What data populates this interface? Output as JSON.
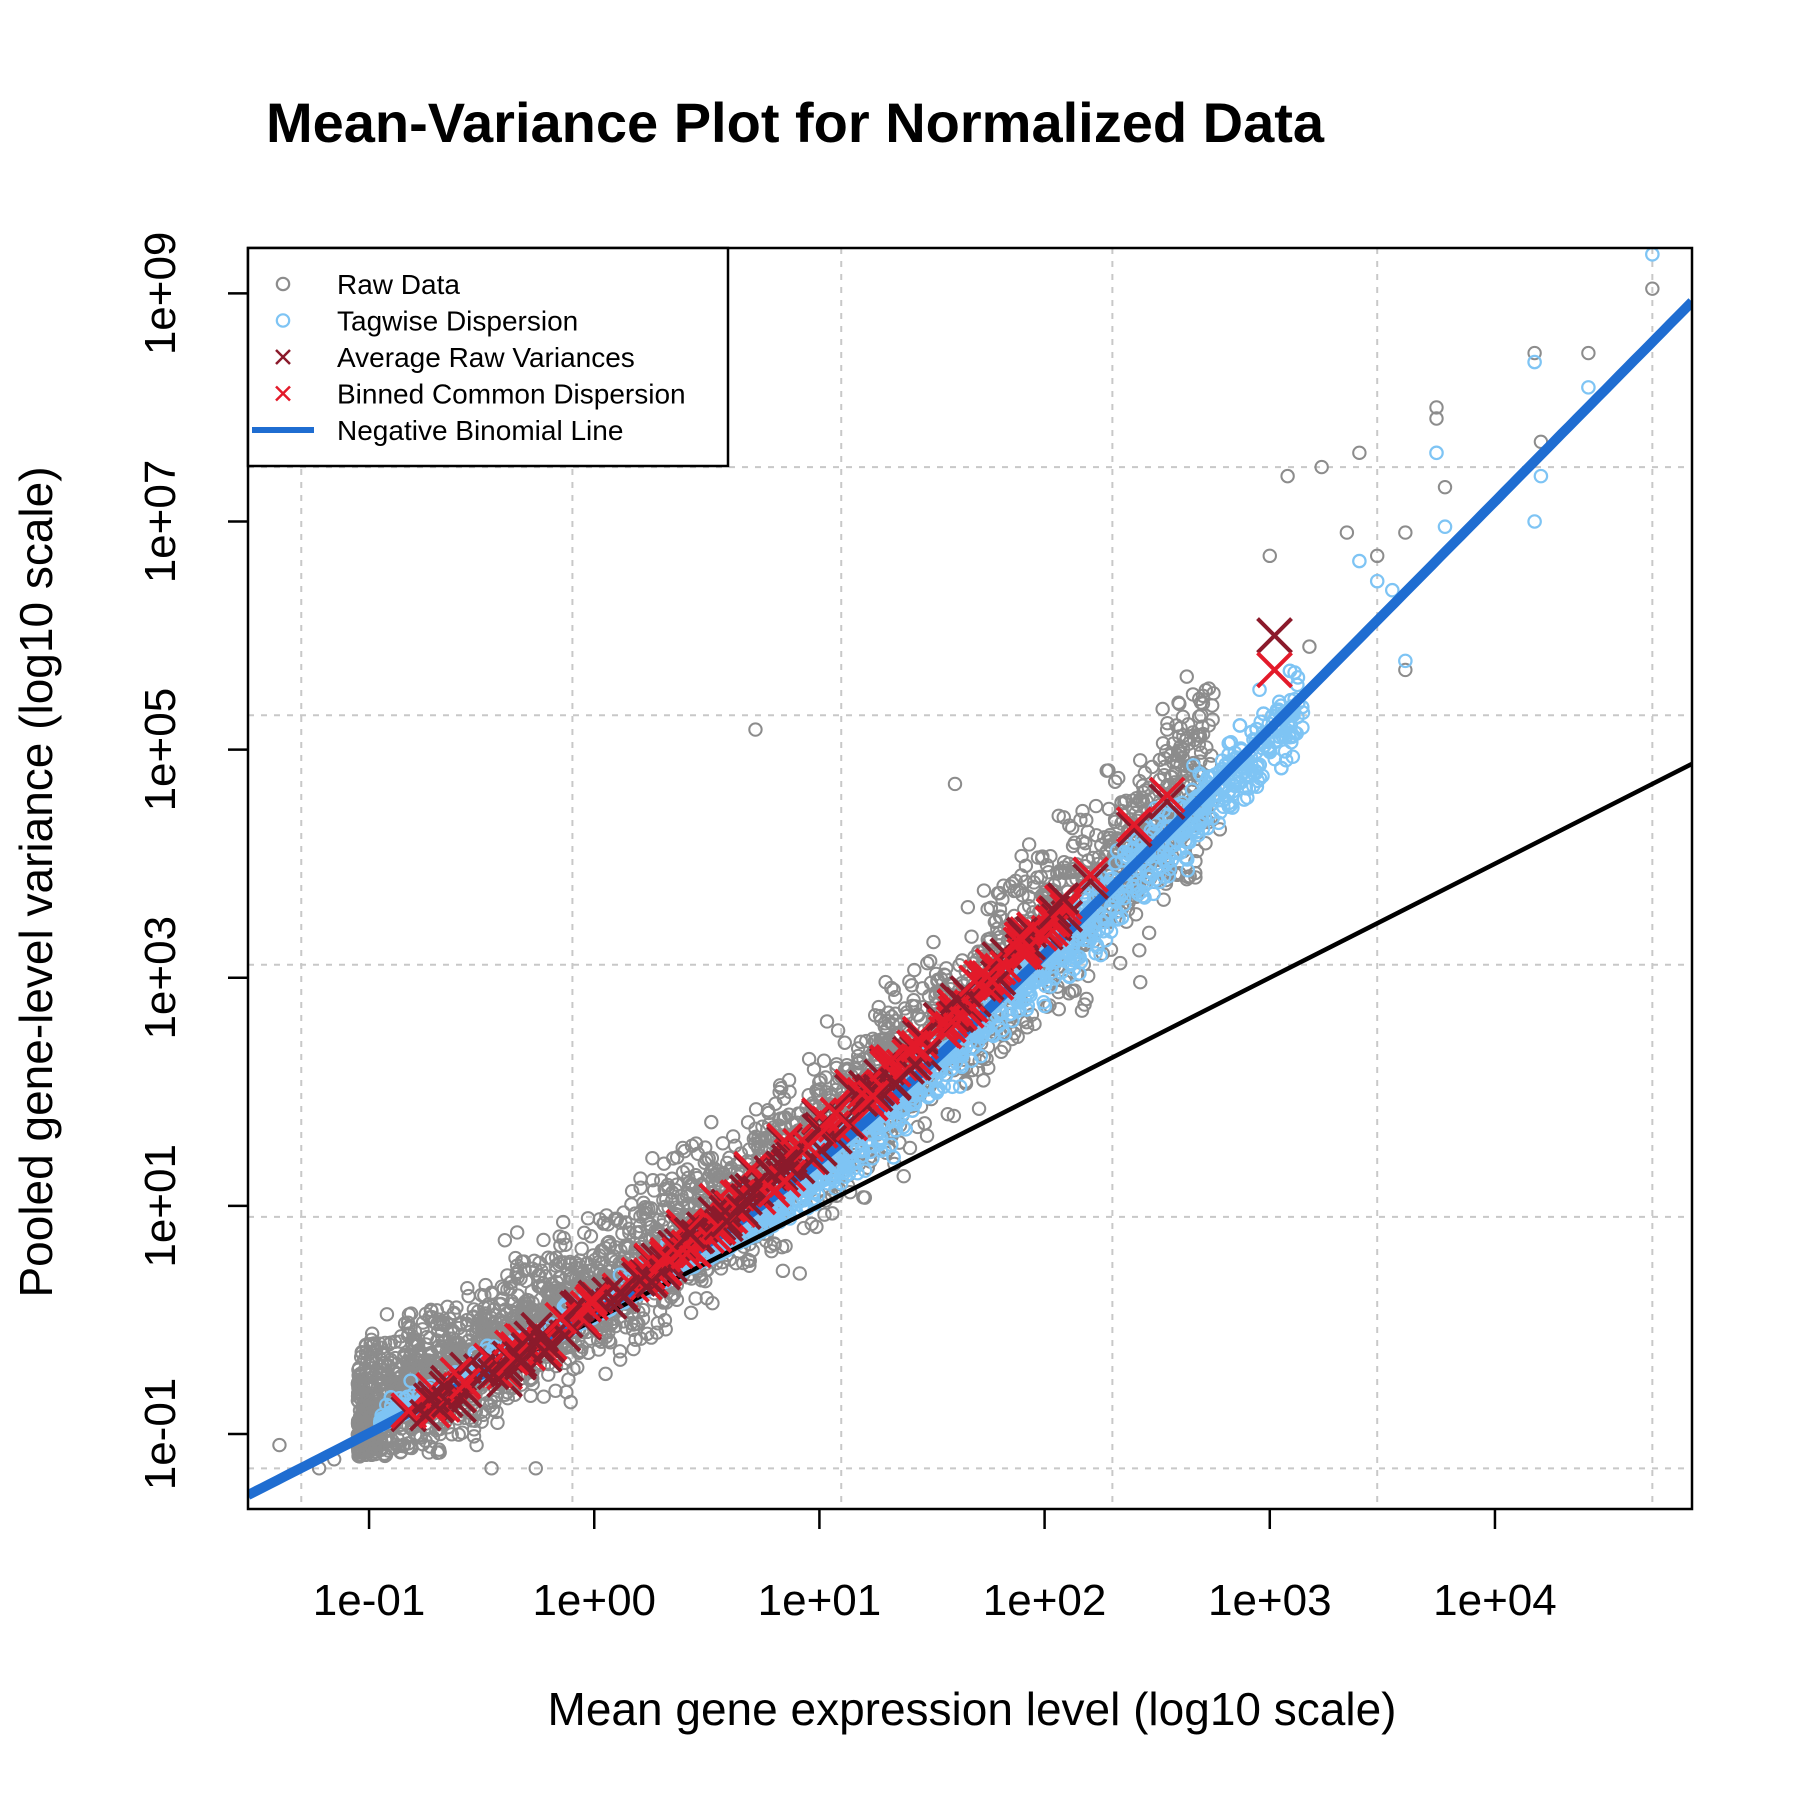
{
  "chart_data": {
    "type": "scatter",
    "title": "Mean-Variance Plot for Normalized Data",
    "xlabel": "Mean gene expression level (log10 scale)",
    "ylabel": "Pooled gene-level variance (log10 scale)",
    "x_scale": "log10",
    "y_scale": "log10",
    "xlim": [
      0.029,
      75000
    ],
    "ylim": [
      0.022,
      2500000000
    ],
    "x_ticks": [
      {
        "value": 0.1,
        "label": "1e-01"
      },
      {
        "value": 1,
        "label": "1e+00"
      },
      {
        "value": 10,
        "label": "1e+01"
      },
      {
        "value": 100,
        "label": "1e+02"
      },
      {
        "value": 1000,
        "label": "1e+03"
      },
      {
        "value": 10000,
        "label": "1e+04"
      }
    ],
    "y_ticks": [
      {
        "value": 0.1,
        "label": "1e-01"
      },
      {
        "value": 10,
        "label": "1e+01"
      },
      {
        "value": 1000,
        "label": "1e+03"
      },
      {
        "value": 100000,
        "label": "1e+05"
      },
      {
        "value": 10000000,
        "label": "1e+07"
      },
      {
        "value": 1000000000,
        "label": "1e+09"
      }
    ],
    "grid": true,
    "grid_x": [
      0.05,
      0.8,
      12.5,
      200,
      3000,
      50000
    ],
    "grid_y": [
      0.05,
      8,
      1300,
      200000,
      30000000
    ],
    "legend_position": "top-left",
    "legend": [
      {
        "label": "Raw Data",
        "symbol": "circle",
        "color": "#8c8c8c"
      },
      {
        "label": "Tagwise Dispersion",
        "symbol": "circle",
        "color": "#7ec4f4"
      },
      {
        "label": "Average Raw Variances",
        "symbol": "x",
        "color": "#8b1a2b"
      },
      {
        "label": "Binned Common Dispersion",
        "symbol": "x",
        "color": "#e31a2a"
      },
      {
        "label": "Negative Binomial Line",
        "symbol": "line",
        "color": "#1f6dd1"
      }
    ],
    "series": [
      {
        "name": "Negative Binomial Line",
        "kind": "curve",
        "model": "variance = mean + phi * mean^2",
        "phi": 0.15,
        "color": "#1f6dd1"
      },
      {
        "kind": "line",
        "model": "variance = mean",
        "color": "#000000"
      },
      {
        "name": "Raw Data",
        "kind": "cloud",
        "color": "#8c8c8c",
        "note_outliers": true,
        "outliers": [
          [
            0.04,
            0.08
          ],
          [
            0.06,
            0.05
          ],
          [
            0.07,
            0.06
          ],
          [
            0.35,
            0.05
          ],
          [
            0.55,
            0.05
          ],
          [
            5.2,
            150000
          ],
          [
            40,
            50000
          ],
          [
            350,
            150000
          ],
          [
            600,
            20000
          ],
          [
            1000,
            5000000
          ],
          [
            1200,
            25000000
          ],
          [
            1700,
            30000000
          ],
          [
            2200,
            8000000
          ],
          [
            2500,
            40000000
          ],
          [
            4000,
            8000000
          ],
          [
            5500,
            80000000
          ],
          [
            5500,
            100000000
          ],
          [
            6000,
            20000000
          ],
          [
            15000,
            300000000
          ],
          [
            16000,
            50000000
          ],
          [
            26000,
            300000000
          ],
          [
            50000,
            1100000000
          ],
          [
            4000,
            500000
          ],
          [
            1500,
            800000
          ],
          [
            3000,
            5000000
          ]
        ]
      },
      {
        "name": "Tagwise Dispersion",
        "kind": "cloud",
        "color": "#7ec4f4",
        "outliers": [
          [
            50000,
            2200000000
          ],
          [
            15000,
            250000000
          ],
          [
            26000,
            150000000
          ],
          [
            16000,
            25000000
          ],
          [
            15000,
            10000000
          ],
          [
            5500,
            40000000
          ],
          [
            6000,
            9000000
          ],
          [
            3000,
            3000000
          ],
          [
            2500,
            4500000
          ],
          [
            3500,
            2500000
          ],
          [
            4000,
            600000
          ]
        ]
      },
      {
        "name": "Average Raw Variances",
        "kind": "binned",
        "color": "#8b1a2b",
        "x": [
          0.15,
          0.25,
          0.4,
          0.6,
          0.9,
          1.3,
          1.8,
          2.5,
          3.5,
          5,
          7,
          10,
          14,
          20,
          28,
          40,
          55,
          80,
          110,
          160,
          250,
          350,
          1050
        ],
        "y": [
          0.15,
          0.18,
          0.3,
          0.5,
          0.95,
          1.7,
          3.2,
          6,
          11,
          20,
          35,
          60,
          100,
          170,
          300,
          550,
          900,
          1700,
          3000,
          7000,
          20000,
          35000,
          1000000
        ]
      },
      {
        "name": "Binned Common Dispersion",
        "kind": "binned",
        "color": "#e31a2a",
        "x": [
          0.15,
          0.25,
          0.4,
          0.6,
          0.9,
          1.3,
          1.8,
          2.5,
          3.5,
          5,
          7,
          10,
          14,
          20,
          28,
          40,
          55,
          80,
          110,
          160,
          250,
          350,
          1050
        ],
        "y": [
          0.16,
          0.22,
          0.35,
          0.55,
          1.0,
          1.8,
          3.3,
          6.5,
          11,
          21,
          37,
          62,
          110,
          180,
          320,
          560,
          1000,
          1900,
          3500,
          8000,
          22000,
          40000,
          500000
        ]
      }
    ]
  }
}
